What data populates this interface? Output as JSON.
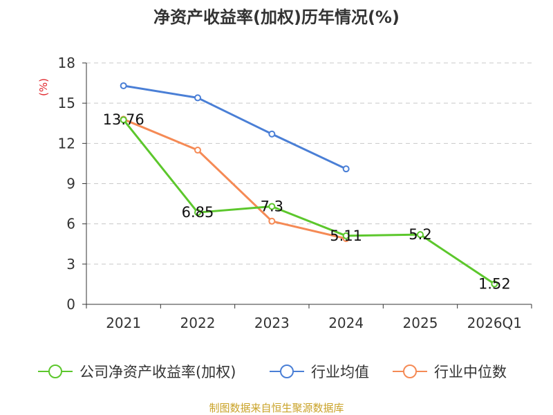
{
  "chart_data": {
    "type": "line",
    "title": "净资产收益率(加权)历年情况(%)",
    "ylabel": "(%)",
    "xlabel": "",
    "categories": [
      "2021",
      "2022",
      "2023",
      "2024",
      "2025",
      "2026Q1"
    ],
    "ylim": [
      0,
      18
    ],
    "yticks": [
      0,
      3,
      6,
      9,
      12,
      15,
      18
    ],
    "grid": true,
    "legend_position": "bottom",
    "series": [
      {
        "name": "公司净资产收益率(加权)",
        "color": "#5cc72c",
        "values": [
          13.76,
          6.85,
          7.3,
          5.11,
          5.2,
          1.52
        ],
        "labels": [
          "13.76",
          "6.85",
          "7.3",
          "5.11",
          "5.2",
          "1.52"
        ]
      },
      {
        "name": "行业均值",
        "color": "#4a7fd6",
        "values": [
          16.3,
          15.4,
          12.7,
          10.1,
          null,
          null
        ]
      },
      {
        "name": "行业中位数",
        "color": "#f58a55",
        "values": [
          13.8,
          11.5,
          6.2,
          4.9,
          null,
          null
        ]
      }
    ],
    "source": "制图数据来自恒生聚源数据库"
  }
}
